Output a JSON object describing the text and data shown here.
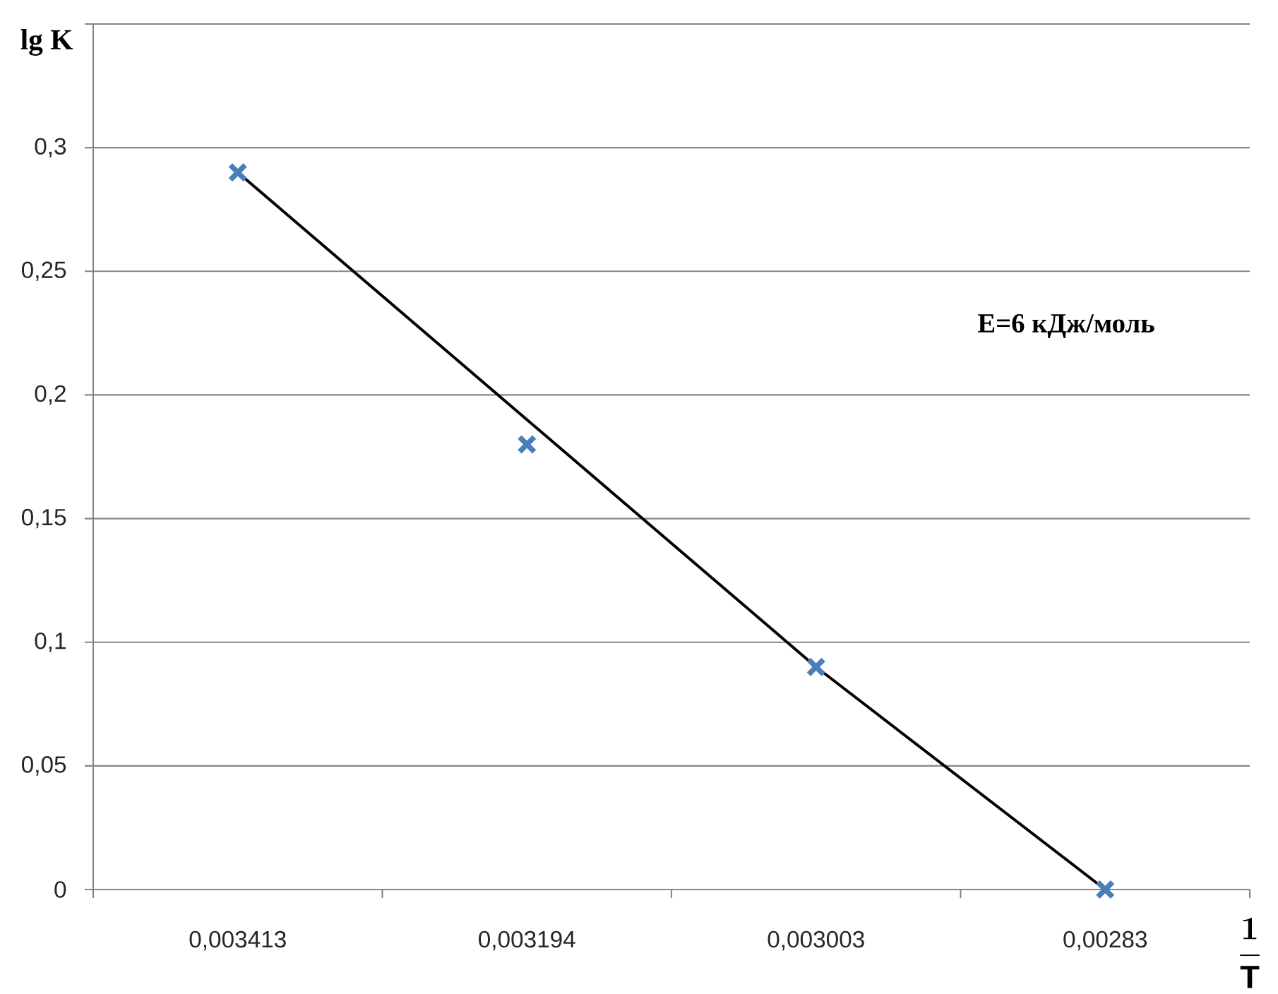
{
  "chart_data": {
    "type": "scatter",
    "ylabel": "lg K",
    "xlabel": "\\frac{1}{\\mathrm{T}}",
    "annotations": [
      "E=6 кДж/моль"
    ],
    "categories": [
      "0,003413",
      "0,003194",
      "0,003003",
      "0,00283"
    ],
    "series": [
      {
        "color": "#4a7ebb",
        "marker": "cross",
        "values": [
          0.29,
          0.18,
          0.09,
          0
        ]
      },
      {
        "type": "line",
        "color": "#000000",
        "values": [
          0.29,
          0.19,
          0.09,
          0
        ]
      }
    ],
    "ylim": [
      0,
      0.35
    ],
    "yticks": [
      0,
      {
        "value": 0.05,
        "label": "0,05"
      },
      {
        "value": 0.1,
        "label": "0,1"
      },
      {
        "value": 0.15,
        "label": "0,15"
      },
      {
        "value": 0.2,
        "label": "0,2"
      },
      {
        "value": 0.25,
        "label": "0,25"
      },
      {
        "value": 0.3,
        "label": "0,3"
      },
      {
        "value": 0.35,
        "label": null
      }
    ],
    "grid": "y"
  }
}
